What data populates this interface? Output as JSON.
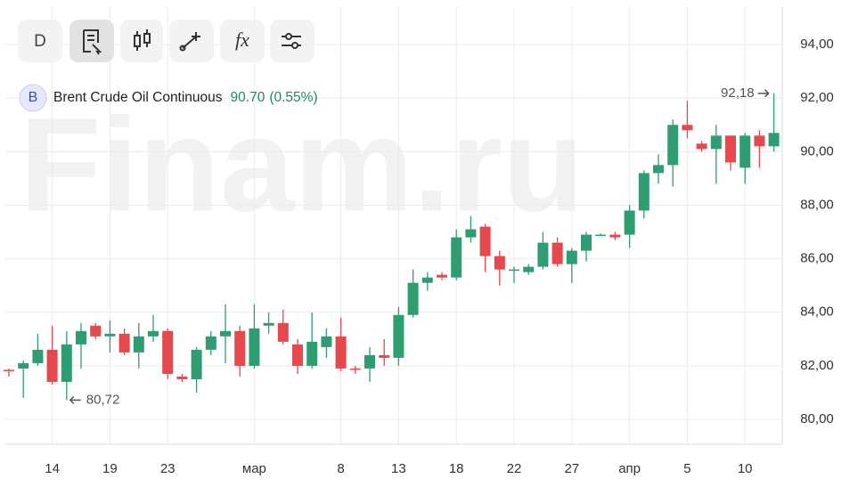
{
  "toolbar": {
    "interval": "D",
    "formula": "fx"
  },
  "header": {
    "badge": "B",
    "last": "90.70",
    "change": "(0.55%)"
  },
  "watermark": "Finam.ru",
  "chart_data": {
    "type": "candlestick",
    "title": "Brent Crude Oil Continuous",
    "categories": [
      null,
      null,
      null,
      "14",
      null,
      null,
      null,
      "19",
      null,
      null,
      null,
      "23",
      null,
      null,
      null,
      null,
      null,
      "мар",
      null,
      null,
      null,
      null,
      null,
      "8",
      null,
      null,
      null,
      "13",
      null,
      null,
      null,
      "18",
      null,
      null,
      null,
      "22",
      null,
      null,
      null,
      "27",
      null,
      null,
      null,
      "апр",
      null,
      null,
      null,
      "5",
      null,
      null,
      null,
      "10",
      null,
      null
    ],
    "open": [
      81.85,
      81.9,
      82.1,
      82.6,
      81.4,
      82.8,
      83.5,
      83.1,
      83.2,
      82.5,
      83.1,
      83.3,
      81.6,
      81.5,
      82.6,
      83.1,
      83.3,
      82.0,
      83.5,
      83.6,
      82.8,
      82.0,
      82.7,
      83.1,
      81.9,
      81.9,
      82.4,
      82.3,
      83.9,
      85.1,
      85.4,
      85.3,
      86.8,
      87.2,
      86.1,
      85.55,
      85.5,
      85.7,
      86.6,
      85.8,
      86.3,
      86.9,
      86.9,
      86.9,
      87.8,
      89.2,
      89.5,
      91.0,
      90.3,
      90.1,
      90.6,
      89.4,
      90.6,
      90.2
    ],
    "high": [
      81.9,
      82.2,
      83.2,
      83.5,
      83.3,
      83.6,
      83.6,
      83.7,
      83.4,
      83.6,
      83.9,
      83.4,
      81.7,
      82.7,
      83.3,
      84.3,
      83.5,
      84.3,
      84.0,
      84.1,
      83.0,
      84.0,
      83.4,
      83.8,
      82.0,
      82.7,
      83.0,
      84.2,
      85.6,
      85.5,
      85.5,
      87.1,
      87.6,
      87.3,
      86.3,
      85.7,
      85.8,
      87.0,
      86.8,
      86.4,
      87.0,
      86.95,
      87.0,
      88.0,
      89.3,
      89.9,
      91.2,
      91.9,
      90.4,
      91.0,
      90.6,
      90.7,
      90.8,
      92.18
    ],
    "low": [
      81.6,
      80.8,
      82.0,
      81.3,
      80.72,
      81.9,
      83.0,
      82.5,
      82.4,
      81.9,
      82.9,
      81.5,
      81.4,
      81.0,
      82.4,
      82.1,
      81.6,
      81.9,
      83.2,
      82.8,
      81.7,
      81.9,
      82.3,
      81.8,
      81.7,
      81.4,
      82.0,
      82.0,
      83.8,
      84.8,
      85.2,
      85.2,
      86.6,
      85.5,
      85.0,
      85.1,
      85.4,
      85.6,
      85.7,
      85.1,
      85.9,
      86.85,
      86.7,
      86.4,
      87.5,
      88.8,
      88.7,
      90.5,
      90.0,
      88.8,
      89.3,
      88.8,
      89.4,
      90.0
    ],
    "close": [
      81.8,
      82.1,
      82.6,
      81.4,
      82.8,
      83.3,
      83.1,
      83.2,
      82.5,
      83.1,
      83.3,
      81.7,
      81.5,
      82.6,
      83.1,
      83.3,
      82.0,
      83.4,
      83.6,
      82.9,
      82.0,
      82.9,
      83.1,
      81.9,
      81.85,
      82.4,
      82.3,
      83.9,
      85.1,
      85.3,
      85.3,
      86.8,
      87.1,
      86.1,
      85.6,
      85.6,
      85.7,
      86.6,
      85.8,
      86.3,
      86.9,
      86.9,
      86.8,
      87.8,
      89.2,
      89.5,
      91.0,
      90.8,
      90.1,
      90.6,
      89.6,
      90.6,
      90.2,
      90.7
    ],
    "up_color": "#2e9e72",
    "down_color": "#e5484d",
    "ylim": [
      79.07,
      95.4
    ],
    "yticks": [
      {
        "value": 80,
        "label": "80,00"
      },
      {
        "value": 82,
        "label": "82,00"
      },
      {
        "value": 84,
        "label": "84,00"
      },
      {
        "value": 86,
        "label": "86,00"
      },
      {
        "value": 88,
        "label": "88,00"
      },
      {
        "value": 90,
        "label": "90,00"
      },
      {
        "value": 92,
        "label": "92,00"
      },
      {
        "value": 94,
        "label": "94,00"
      }
    ],
    "grid": true,
    "annotations": [
      {
        "index": 53,
        "value": 92.18,
        "label": "92,18",
        "side": "left"
      },
      {
        "index": 4,
        "value": 80.72,
        "label": "80,72",
        "side": "right"
      }
    ]
  }
}
